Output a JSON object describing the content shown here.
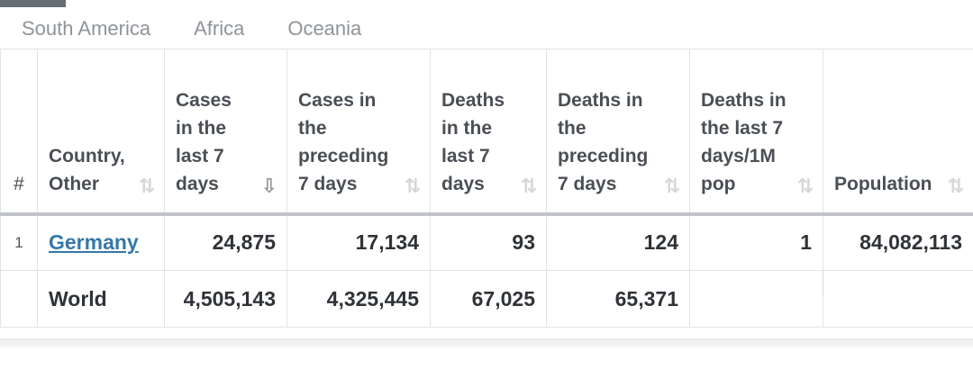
{
  "region_tabs": [
    "South America",
    "Africa",
    "Oceania"
  ],
  "table": {
    "headers": {
      "rank": "#",
      "country": "Country, Other",
      "cases_7d": "Cases in the last 7 days",
      "cases_prev_7d": "Cases in the preceding 7 days",
      "deaths_7d": "Deaths in the last 7 days",
      "deaths_prev_7d": "Deaths in the preceding 7 days",
      "deaths_7d_per_1m": "Deaths in the last 7 days/1M pop",
      "population": "Population"
    },
    "rows": [
      {
        "rank": "1",
        "country": "Germany",
        "cases_7d": "24,875",
        "cases_prev_7d": "17,134",
        "deaths_7d": "93",
        "deaths_prev_7d": "124",
        "deaths_7d_per_1m": "1",
        "population": "84,082,113"
      }
    ],
    "world": {
      "country": "World",
      "cases_7d": "4,505,143",
      "cases_prev_7d": "4,325,445",
      "deaths_7d": "67,025",
      "deaths_prev_7d": "65,371"
    },
    "sorted_column": "cases_7d",
    "colors": {
      "link": "#3578a8",
      "header_text": "#4a4f55",
      "border": "#e2e3e5"
    }
  }
}
